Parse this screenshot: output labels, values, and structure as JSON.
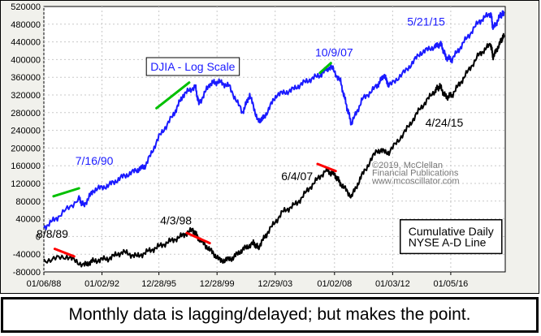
{
  "caption": "Monthly data is lagging/delayed; but makes the point.",
  "chart_data": {
    "type": "line",
    "ylim": [
      -80000,
      520000
    ],
    "yticks": [
      -80000,
      -40000,
      0,
      40000,
      80000,
      120000,
      160000,
      200000,
      240000,
      280000,
      320000,
      360000,
      400000,
      440000,
      480000,
      520000
    ],
    "xlim": [
      "1988-01",
      "2019-10"
    ],
    "xticks": [
      {
        "date": "1988-01",
        "label": "01/06/88"
      },
      {
        "date": "1992-01",
        "label": "01/02/92"
      },
      {
        "date": "1995-12",
        "label": "12/28/95"
      },
      {
        "date": "1999-12",
        "label": "12/28/99"
      },
      {
        "date": "2003-12",
        "label": "12/29/03"
      },
      {
        "date": "2008-01",
        "label": "01/02/08"
      },
      {
        "date": "2012-01",
        "label": "01/03/12"
      },
      {
        "date": "2016-01",
        "label": "01/05/16"
      }
    ],
    "series": [
      {
        "name": "",
        "color": "#1a1aff",
        "points": [
          [
            "1988-01",
            20000
          ],
          [
            "1989-01",
            45000
          ],
          [
            "1990-06",
            85000
          ],
          [
            "1990-10",
            70000
          ],
          [
            "1991-06",
            105000
          ],
          [
            "1992-06",
            115000
          ],
          [
            "1993-06",
            135000
          ],
          [
            "1994-06",
            150000
          ],
          [
            "1995-01",
            160000
          ],
          [
            "1995-12",
            225000
          ],
          [
            "1996-12",
            275000
          ],
          [
            "1997-08",
            320000
          ],
          [
            "1998-06",
            340000
          ],
          [
            "1998-09",
            300000
          ],
          [
            "1999-06",
            345000
          ],
          [
            "2000-01",
            350000
          ],
          [
            "2000-10",
            340000
          ],
          [
            "2001-09",
            280000
          ],
          [
            "2002-03",
            320000
          ],
          [
            "2002-10",
            260000
          ],
          [
            "2003-03",
            270000
          ],
          [
            "2004-01",
            320000
          ],
          [
            "2005-01",
            330000
          ],
          [
            "2006-01",
            350000
          ],
          [
            "2007-01",
            365000
          ],
          [
            "2007-10",
            385000
          ],
          [
            "2008-06",
            350000
          ],
          [
            "2008-11",
            295000
          ],
          [
            "2009-03",
            255000
          ],
          [
            "2009-12",
            310000
          ],
          [
            "2010-12",
            340000
          ],
          [
            "2011-06",
            365000
          ],
          [
            "2011-10",
            340000
          ],
          [
            "2012-12",
            375000
          ],
          [
            "2013-12",
            415000
          ],
          [
            "2014-12",
            430000
          ],
          [
            "2015-05",
            435000
          ],
          [
            "2015-09",
            405000
          ],
          [
            "2016-02",
            400000
          ],
          [
            "2016-12",
            440000
          ],
          [
            "2017-12",
            485000
          ],
          [
            "2018-10",
            505000
          ],
          [
            "2018-12",
            470000
          ],
          [
            "2019-06",
            500000
          ],
          [
            "2019-09",
            505000
          ]
        ]
      },
      {
        "name": "",
        "color": "#000000",
        "points": [
          [
            "1988-01",
            -55000
          ],
          [
            "1989-08",
            -45000
          ],
          [
            "1990-10",
            -65000
          ],
          [
            "1991-06",
            -55000
          ],
          [
            "1992-06",
            -50000
          ],
          [
            "1993-06",
            -35000
          ],
          [
            "1994-06",
            -45000
          ],
          [
            "1995-06",
            -30000
          ],
          [
            "1996-06",
            -15000
          ],
          [
            "1997-06",
            0
          ],
          [
            "1998-04",
            15000
          ],
          [
            "1998-09",
            -5000
          ],
          [
            "1999-06",
            -30000
          ],
          [
            "2000-03",
            -55000
          ],
          [
            "2000-12",
            -50000
          ],
          [
            "2001-09",
            -30000
          ],
          [
            "2002-06",
            -15000
          ],
          [
            "2002-10",
            -25000
          ],
          [
            "2003-06",
            10000
          ],
          [
            "2004-06",
            55000
          ],
          [
            "2005-06",
            75000
          ],
          [
            "2006-06",
            115000
          ],
          [
            "2007-06",
            150000
          ],
          [
            "2008-01",
            140000
          ],
          [
            "2008-06",
            120000
          ],
          [
            "2009-03",
            90000
          ],
          [
            "2009-12",
            140000
          ],
          [
            "2010-12",
            195000
          ],
          [
            "2011-10",
            190000
          ],
          [
            "2012-12",
            240000
          ],
          [
            "2013-12",
            290000
          ],
          [
            "2014-12",
            330000
          ],
          [
            "2015-04",
            340000
          ],
          [
            "2015-09",
            315000
          ],
          [
            "2016-02",
            320000
          ],
          [
            "2016-12",
            360000
          ],
          [
            "2017-12",
            410000
          ],
          [
            "2018-10",
            435000
          ],
          [
            "2018-12",
            405000
          ],
          [
            "2019-06",
            440000
          ],
          [
            "2019-09",
            455000
          ]
        ]
      }
    ],
    "highlights": [
      {
        "color": "#00c000",
        "from": [
          "1988-09",
          91000
        ],
        "to": [
          "1990-06",
          109000
        ]
      },
      {
        "color": "#00c000",
        "from": [
          "1995-10",
          290000
        ],
        "to": [
          "1998-01",
          348000
        ]
      },
      {
        "color": "#00c000",
        "from": [
          "2007-01",
          370000
        ],
        "to": [
          "2007-10",
          392000
        ]
      },
      {
        "color": "#ff0000",
        "from": [
          "1988-10",
          -28000
        ],
        "to": [
          "1990-02",
          -45000
        ]
      },
      {
        "color": "#ff0000",
        "from": [
          "1997-11",
          8000
        ],
        "to": [
          "1999-06",
          -15000
        ]
      },
      {
        "color": "#ff0000",
        "from": [
          "2006-11",
          164000
        ],
        "to": [
          "2008-02",
          148000
        ]
      }
    ],
    "annotations": [
      {
        "text": "DJIA - Log Scale",
        "boxed": true,
        "color": "#1a1aff",
        "at": [
          "1995-05",
          375000
        ]
      },
      {
        "text": "7/16/90",
        "color": "#1a1aff",
        "at": [
          "1990-03",
          162000
        ]
      },
      {
        "text": "10/9/07",
        "color": "#1a1aff",
        "at": [
          "2006-09",
          407000
        ]
      },
      {
        "text": "5/21/15",
        "color": "#1a1aff",
        "at": [
          "2013-01",
          477000
        ]
      },
      {
        "text": "8/8/89",
        "color": "#000000",
        "at": [
          "1987-07",
          -3000
        ]
      },
      {
        "text": "4/3/98",
        "color": "#000000",
        "at": [
          "1996-01",
          27000
        ]
      },
      {
        "text": "6/4/07",
        "color": "#000000",
        "at": [
          "2004-05",
          127000
        ]
      },
      {
        "text": "4/24/15",
        "color": "#000000",
        "at": [
          "2014-04",
          248000
        ]
      },
      {
        "text": "©2019, McClellan",
        "color": "#777777",
        "size": 11,
        "at": [
          "2010-08",
          155000
        ]
      },
      {
        "text": "Financial Publications",
        "color": "#777777",
        "size": 11,
        "at": [
          "2010-08",
          137000
        ]
      },
      {
        "text": "www.mcoscillator.com",
        "color": "#777777",
        "size": 11,
        "at": [
          "2010-08",
          119000
        ]
      },
      {
        "text": "Cumulative Daily",
        "boxed_group": "ad",
        "color": "#000000",
        "at": [
          "2013-02",
          3000
        ]
      },
      {
        "text": "NYSE A-D Line",
        "boxed_group": "ad",
        "color": "#000000",
        "at": [
          "2013-02",
          -22000
        ]
      }
    ]
  }
}
